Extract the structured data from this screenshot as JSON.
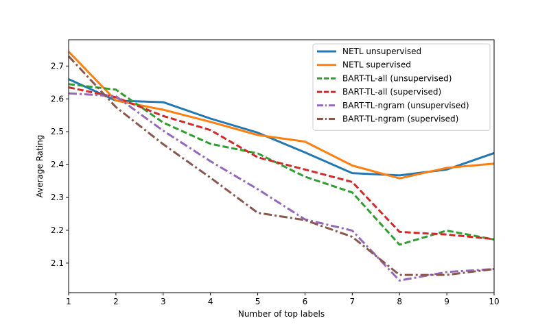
{
  "chart_data": {
    "type": "line",
    "title": "",
    "xlabel": "Number of top labels",
    "ylabel": "Average Rating",
    "xlim": [
      1,
      10
    ],
    "ylim": [
      2.01,
      2.78
    ],
    "xticks": [
      1,
      2,
      3,
      4,
      5,
      6,
      7,
      8,
      9,
      10
    ],
    "yticks": [
      2.1,
      2.2,
      2.3,
      2.4,
      2.5,
      2.6,
      2.7
    ],
    "grid": false,
    "legend_position": "top-right",
    "x": [
      1,
      2,
      3,
      4,
      5,
      6,
      7,
      8,
      9,
      10
    ],
    "series": [
      {
        "name": "NETL unsupervised",
        "color": "#1f77b4",
        "dash": "solid",
        "values": [
          2.66,
          2.595,
          2.59,
          2.54,
          2.497,
          2.437,
          2.374,
          2.367,
          2.385,
          2.435
        ]
      },
      {
        "name": "NETL supervised",
        "color": "#ff7f0e",
        "dash": "solid",
        "values": [
          2.744,
          2.595,
          2.567,
          2.53,
          2.49,
          2.47,
          2.397,
          2.358,
          2.39,
          2.403
        ]
      },
      {
        "name": "BART-TL-all (unsupervised)",
        "color": "#2ca02c",
        "dash": "dashed",
        "values": [
          2.645,
          2.628,
          2.528,
          2.463,
          2.434,
          2.363,
          2.315,
          2.156,
          2.199,
          2.172
        ]
      },
      {
        "name": "BART-TL-all (supervised)",
        "color": "#d62728",
        "dash": "dashed",
        "values": [
          2.635,
          2.605,
          2.548,
          2.505,
          2.422,
          2.385,
          2.347,
          2.195,
          2.187,
          2.173
        ]
      },
      {
        "name": "BART-TL-ngram (unsupervised)",
        "color": "#9467bd",
        "dash": "dashdot",
        "values": [
          2.617,
          2.608,
          2.503,
          2.41,
          2.325,
          2.233,
          2.199,
          2.047,
          2.073,
          2.082
        ]
      },
      {
        "name": "BART-TL-ngram (supervised)",
        "color": "#8c564b",
        "dash": "dashdot",
        "values": [
          2.73,
          2.575,
          2.462,
          2.36,
          2.253,
          2.231,
          2.18,
          2.064,
          2.064,
          2.082
        ]
      }
    ]
  }
}
